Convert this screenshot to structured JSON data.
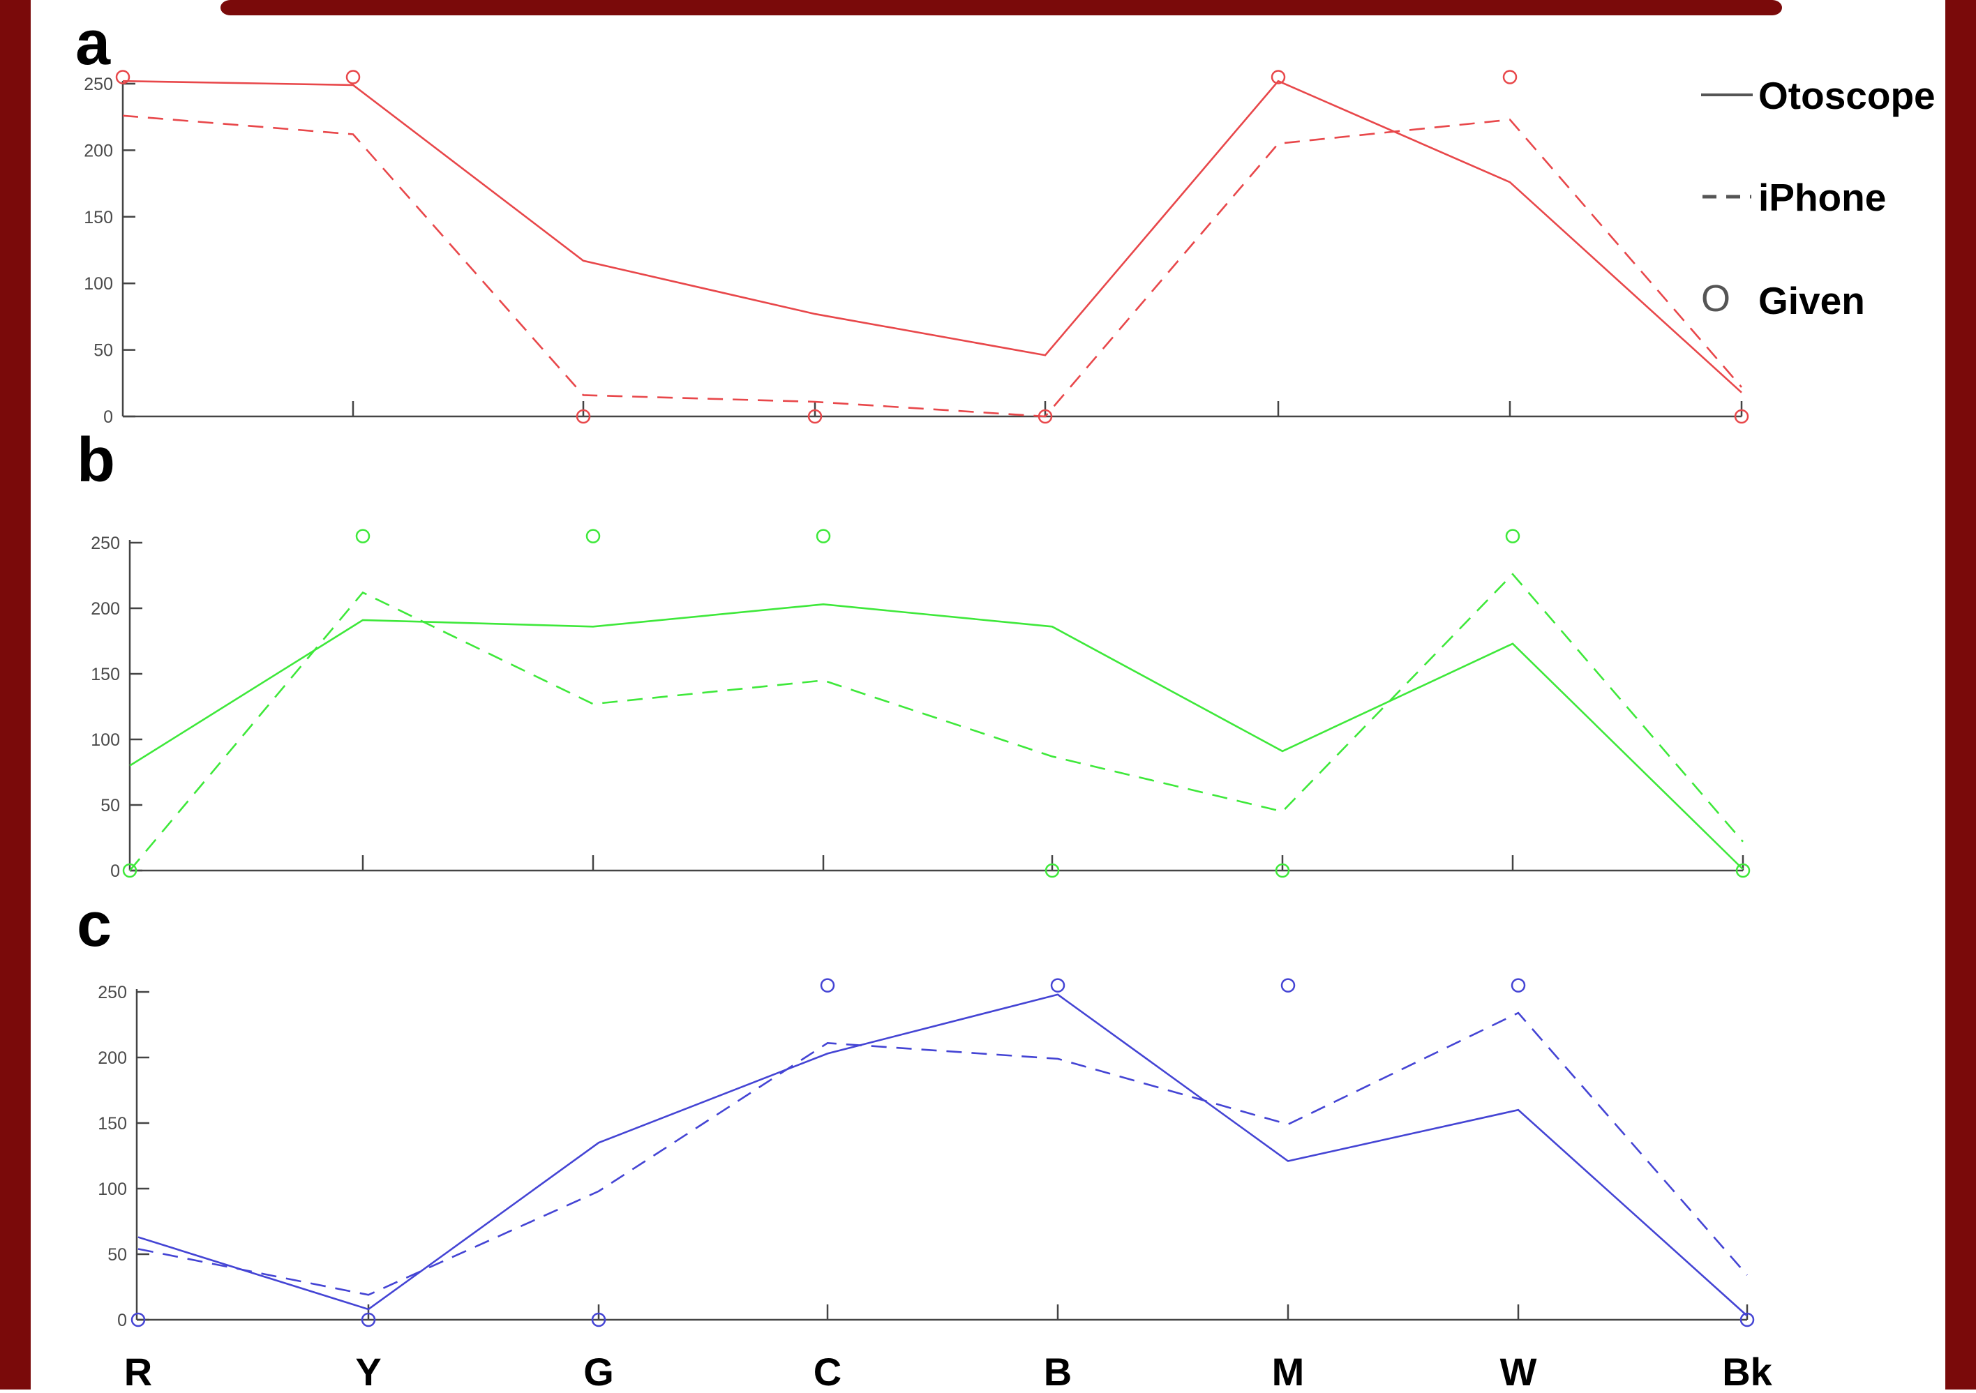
{
  "colors": {
    "frame": "#7a0a0a",
    "red": "#e8474a",
    "green": "#3ee83a",
    "blue": "#4444d4",
    "axis": "#444444",
    "legend_sample": "#555555"
  },
  "legend": {
    "otoscope": "Otoscope",
    "iphone": "iPhone",
    "given": "Given",
    "given_marker": "O"
  },
  "chart_data": [
    {
      "type": "line",
      "panel_label": "a",
      "categories": [
        "R",
        "Y",
        "G",
        "C",
        "B",
        "M",
        "W",
        "Bk"
      ],
      "ylim": [
        0,
        250
      ],
      "yticks": [
        0,
        50,
        100,
        150,
        200,
        250
      ],
      "series": [
        {
          "name": "Otoscope",
          "style": "solid",
          "values": [
            252,
            249,
            117,
            77,
            46,
            252,
            176,
            18
          ]
        },
        {
          "name": "iPhone",
          "style": "dashed",
          "values": [
            226,
            212,
            16,
            11,
            0,
            205,
            223,
            22
          ]
        },
        {
          "name": "Given",
          "style": "marker",
          "values": [
            255,
            255,
            0,
            0,
            0,
            255,
            255,
            0
          ]
        }
      ]
    },
    {
      "type": "line",
      "panel_label": "b",
      "categories": [
        "R",
        "Y",
        "G",
        "C",
        "B",
        "M",
        "W",
        "Bk"
      ],
      "ylim": [
        0,
        250
      ],
      "yticks": [
        0,
        50,
        100,
        150,
        200,
        250
      ],
      "series": [
        {
          "name": "Otoscope",
          "style": "solid",
          "values": [
            80,
            191,
            186,
            203,
            186,
            91,
            173,
            1
          ]
        },
        {
          "name": "iPhone",
          "style": "dashed",
          "values": [
            0,
            212,
            127,
            145,
            87,
            45,
            226,
            22
          ]
        },
        {
          "name": "Given",
          "style": "marker",
          "values": [
            0,
            255,
            255,
            255,
            0,
            0,
            255,
            0
          ]
        }
      ]
    },
    {
      "type": "line",
      "panel_label": "c",
      "categories": [
        "R",
        "Y",
        "G",
        "C",
        "B",
        "M",
        "W",
        "Bk"
      ],
      "ylim": [
        0,
        250
      ],
      "yticks": [
        0,
        50,
        100,
        150,
        200,
        250
      ],
      "series": [
        {
          "name": "Otoscope",
          "style": "solid",
          "values": [
            63,
            8,
            135,
            203,
            248,
            121,
            160,
            3
          ]
        },
        {
          "name": "iPhone",
          "style": "dashed",
          "values": [
            54,
            19,
            98,
            211,
            199,
            149,
            234,
            34
          ]
        },
        {
          "name": "Given",
          "style": "marker",
          "values": [
            0,
            0,
            0,
            255,
            255,
            255,
            255,
            0
          ]
        }
      ]
    }
  ]
}
